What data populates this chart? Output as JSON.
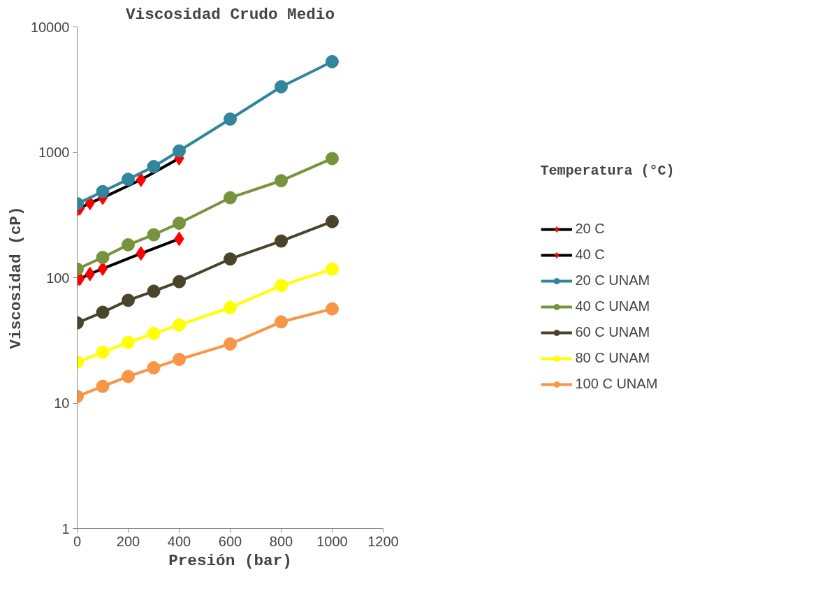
{
  "chart_data": {
    "type": "line",
    "title": "Viscosidad Crudo Medio",
    "xlabel": "Presión (bar)",
    "ylabel": "Viscosidad (cP)",
    "legend_title": "Temperatura (°C)",
    "log": "y",
    "xlim": [
      0,
      1200
    ],
    "xticks": [
      0,
      200,
      400,
      600,
      800,
      1000,
      1200
    ],
    "ylim": [
      1,
      10000
    ],
    "yticks": [
      1,
      10,
      100,
      1000,
      10000
    ],
    "grid": false,
    "legend": "right",
    "series": [
      {
        "name": "20 C",
        "color": "#000000",
        "marker": "diamond",
        "colors": [
          "#ff0000",
          "#ff0000",
          "#ff0000",
          "#ff0000",
          "#ff0000",
          "#ff0000"
        ],
        "x": [
          0,
          10,
          50,
          100,
          250,
          400
        ],
        "values": [
          350,
          357,
          395,
          434,
          604,
          896
        ]
      },
      {
        "name": "40 C",
        "color": "#000000",
        "marker": "diamond",
        "colors": [
          "#ff0000",
          "#ff0000",
          "#ff0000",
          "#ff0000",
          "#ff0000",
          "#ff0000"
        ],
        "x": [
          0,
          10,
          50,
          100,
          250,
          400
        ],
        "values": [
          97,
          98,
          107,
          118,
          156,
          204
        ]
      },
      {
        "name": "20 C UNAM",
        "color": "#31859c",
        "marker": "circle",
        "x": [
          0,
          100,
          200,
          300,
          400,
          600,
          800,
          1000
        ],
        "values": [
          389,
          486,
          609,
          769,
          1025,
          1840,
          3330,
          5280
        ]
      },
      {
        "name": "40 C UNAM",
        "color": "#77933c",
        "marker": "circle",
        "x": [
          0,
          100,
          200,
          300,
          400,
          600,
          800,
          1000
        ],
        "values": [
          117,
          145,
          183,
          220,
          272,
          434,
          593,
          892
        ]
      },
      {
        "name": "60 C UNAM",
        "color": "#4a452a",
        "marker": "circle",
        "x": [
          0,
          100,
          200,
          300,
          400,
          600,
          800,
          1000
        ],
        "values": [
          43.6,
          53,
          66,
          78,
          93,
          141,
          196,
          280
        ]
      },
      {
        "name": "80 C UNAM",
        "color": "#ffff00",
        "marker": "circle",
        "x": [
          0,
          100,
          200,
          300,
          400,
          600,
          800,
          1000
        ],
        "values": [
          21.2,
          25.4,
          30.5,
          35.9,
          42,
          57.8,
          86.5,
          117
        ]
      },
      {
        "name": "100 C UNAM",
        "color": "#f79646",
        "marker": "circle",
        "x": [
          0,
          100,
          200,
          300,
          400,
          600,
          800,
          1000
        ],
        "values": [
          11.3,
          13.6,
          16.3,
          19.1,
          22.3,
          29.6,
          44.4,
          56.4
        ]
      }
    ]
  }
}
